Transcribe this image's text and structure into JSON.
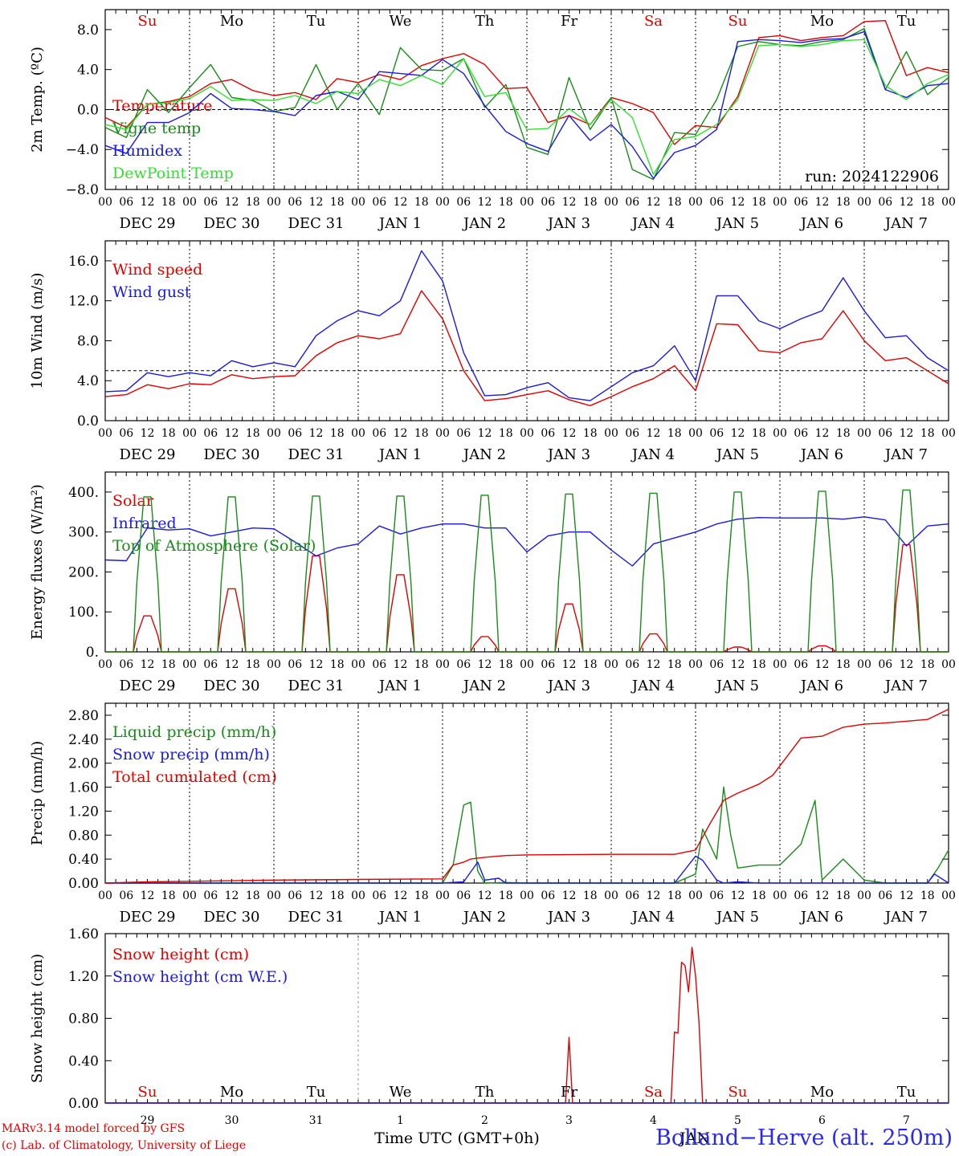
{
  "footer": {
    "credit_line1": "MARv3.14 model forced by GFS",
    "credit_line2": "(c) Lab. of Climatology, University of Liege",
    "station": "Bolland−Herve (alt. 250m)",
    "x_title": "Time UTC (GMT+0h)",
    "x_sub": "JAN"
  },
  "axis": {
    "hour_ticks": [
      "00",
      "06",
      "12",
      "18"
    ],
    "date_labels": [
      "DEC 29",
      "DEC 30",
      "DEC 31",
      "JAN  1",
      "JAN  2",
      "JAN  3",
      "JAN  4",
      "JAN  5",
      "JAN  6",
      "JAN  7"
    ],
    "day_names": [
      "Su",
      "Mo",
      "Tu",
      "We",
      "Th",
      "Fr",
      "Sa",
      "Su",
      "Mo",
      "Tu"
    ],
    "day_colors": [
      "#e00000",
      "#000000",
      "#000000",
      "#000000",
      "#000000",
      "#000000",
      "#e00000",
      "#e00000",
      "#000000",
      "#000000"
    ],
    "bottom_day_numbers": [
      "29",
      "30",
      "31",
      "1",
      "2",
      "3",
      "4",
      "5",
      "6",
      "7"
    ]
  },
  "chart_data": [
    {
      "type": "line",
      "ylabel": "2m Temp. (ºC)",
      "ylim": [
        -8,
        10
      ],
      "yticks": [
        "8.0",
        "4.0",
        "0.0",
        "−4.0",
        "−8.0"
      ],
      "ytick_values": [
        8,
        4,
        0,
        -4,
        -8
      ],
      "ref_line": 0,
      "annotation": "run: 2024122906",
      "series": [
        {
          "name": "Temperature",
          "color": "#e00000",
          "x": [
            0,
            6,
            12,
            18,
            24,
            30,
            36,
            42,
            48,
            54,
            60,
            66,
            72,
            78,
            84,
            90,
            96,
            102,
            108,
            114,
            120,
            126,
            132,
            138,
            144,
            150,
            156,
            162,
            168,
            174,
            180,
            186,
            192,
            198,
            204,
            210,
            216,
            222,
            228,
            234,
            240
          ],
          "values": [
            -0.8,
            -1.8,
            0.5,
            0.8,
            1.3,
            2.6,
            3.0,
            1.9,
            1.4,
            1.7,
            1.0,
            3.1,
            2.7,
            3.5,
            3.0,
            4.4,
            5.1,
            5.6,
            4.5,
            2.1,
            2.2,
            -1.3,
            -0.6,
            -1.5,
            1.2,
            0.6,
            -0.3,
            -3.5,
            -1.6,
            -1.8,
            1.3,
            7.2,
            7.4,
            6.9,
            7.2,
            7.4,
            8.8,
            8.9,
            3.4,
            4.2,
            3.7
          ]
        },
        {
          "name": "Vigne temp",
          "color": "#1a8a1a",
          "x": [
            0,
            6,
            12,
            18,
            24,
            30,
            36,
            42,
            48,
            54,
            60,
            66,
            72,
            78,
            84,
            90,
            96,
            102,
            108,
            114,
            120,
            126,
            132,
            138,
            144,
            150,
            156,
            162,
            168,
            174,
            180,
            186,
            192,
            198,
            204,
            210,
            216,
            222,
            228,
            234,
            240
          ],
          "values": [
            -1.8,
            -2.8,
            2.0,
            -0.3,
            2.2,
            4.5,
            1.2,
            0.9,
            -0.2,
            0.2,
            4.5,
            0.0,
            2.6,
            -0.5,
            6.2,
            4.0,
            3.9,
            5.1,
            0.2,
            2.5,
            -3.8,
            -4.5,
            3.2,
            -2.0,
            1.2,
            -6.0,
            -7.0,
            -2.3,
            -2.5,
            1.0,
            6.3,
            6.8,
            6.5,
            6.4,
            6.8,
            7.0,
            8.1,
            2.0,
            5.8,
            1.5,
            3.2
          ]
        },
        {
          "name": "Humidex",
          "color": "#1a1ae0",
          "x": [
            0,
            6,
            12,
            18,
            24,
            30,
            36,
            42,
            48,
            54,
            60,
            66,
            72,
            78,
            84,
            90,
            96,
            102,
            108,
            114,
            120,
            126,
            132,
            138,
            144,
            150,
            156,
            162,
            168,
            174,
            180,
            186,
            192,
            198,
            204,
            210,
            216,
            222,
            228,
            234,
            240
          ],
          "values": [
            -3.6,
            -4.4,
            -1.3,
            -1.3,
            -0.3,
            1.6,
            0.1,
            0.0,
            -0.2,
            -0.6,
            1.4,
            1.8,
            1.0,
            3.8,
            3.6,
            3.4,
            5.0,
            3.6,
            0.4,
            -2.2,
            -3.4,
            -4.2,
            -0.6,
            -3.1,
            -1.5,
            -3.7,
            -6.9,
            -4.3,
            -3.6,
            -2.0,
            6.8,
            7.0,
            6.9,
            6.7,
            7.0,
            7.1,
            7.8,
            2.0,
            1.2,
            2.4,
            2.6
          ]
        },
        {
          "name": "DewPoint Temp",
          "color": "#33dd33",
          "x": [
            0,
            6,
            12,
            18,
            24,
            30,
            36,
            42,
            48,
            54,
            60,
            66,
            72,
            78,
            84,
            90,
            96,
            102,
            108,
            114,
            120,
            126,
            132,
            138,
            144,
            150,
            156,
            162,
            168,
            174,
            180,
            186,
            192,
            198,
            204,
            210,
            216,
            222,
            228,
            234,
            240
          ],
          "values": [
            -1.5,
            -2.0,
            0.5,
            0.7,
            1.1,
            2.3,
            0.9,
            1.0,
            0.9,
            1.4,
            0.6,
            1.8,
            1.6,
            3.0,
            2.4,
            3.4,
            2.5,
            5.1,
            1.3,
            1.7,
            -2.0,
            -1.9,
            0.1,
            -1.5,
            1.0,
            -0.8,
            -6.5,
            -3.0,
            -2.7,
            -1.5,
            1.0,
            6.4,
            6.5,
            6.3,
            6.5,
            6.9,
            7.0,
            2.4,
            1.0,
            2.6,
            3.5
          ]
        }
      ]
    },
    {
      "type": "line",
      "ylabel": "10m Wind (m/s)",
      "ylim": [
        0,
        18
      ],
      "yticks": [
        "16.0",
        "12.0",
        "8.0",
        "4.0",
        "0.0"
      ],
      "ytick_values": [
        16,
        12,
        8,
        4,
        0
      ],
      "ref_line": 5,
      "series": [
        {
          "name": "Wind speed",
          "color": "#e00000",
          "x": [
            0,
            6,
            12,
            18,
            24,
            30,
            36,
            42,
            48,
            54,
            60,
            66,
            72,
            78,
            84,
            90,
            96,
            102,
            108,
            114,
            120,
            126,
            132,
            138,
            144,
            150,
            156,
            162,
            168,
            174,
            180,
            186,
            192,
            198,
            204,
            210,
            216,
            222,
            228,
            234,
            240
          ],
          "values": [
            2.4,
            2.6,
            3.6,
            3.2,
            3.7,
            3.6,
            4.6,
            4.2,
            4.4,
            4.5,
            6.5,
            7.8,
            8.5,
            8.2,
            8.7,
            13.0,
            10.2,
            5.0,
            2.0,
            2.2,
            2.6,
            3.0,
            2.1,
            1.5,
            2.4,
            3.4,
            4.2,
            5.5,
            3.0,
            9.7,
            9.6,
            7.0,
            6.8,
            7.8,
            8.2,
            11.0,
            8.0,
            6.0,
            6.3,
            5.0,
            3.7
          ]
        },
        {
          "name": "Wind gust",
          "color": "#1a1ae0",
          "x": [
            0,
            6,
            12,
            18,
            24,
            30,
            36,
            42,
            48,
            54,
            60,
            66,
            72,
            78,
            84,
            90,
            96,
            102,
            108,
            114,
            120,
            126,
            132,
            138,
            144,
            150,
            156,
            162,
            168,
            174,
            180,
            186,
            192,
            198,
            204,
            210,
            216,
            222,
            228,
            234,
            240
          ],
          "values": [
            2.9,
            3.0,
            4.8,
            4.4,
            4.8,
            4.5,
            6.0,
            5.4,
            5.8,
            5.4,
            8.5,
            10.0,
            11.0,
            10.5,
            12.0,
            17.0,
            14.0,
            6.8,
            2.5,
            2.6,
            3.3,
            3.8,
            2.3,
            2.0,
            3.4,
            4.8,
            5.5,
            7.5,
            4.0,
            12.5,
            12.5,
            10.0,
            9.2,
            10.2,
            11.0,
            14.3,
            11.0,
            8.3,
            8.5,
            6.3,
            5.0
          ]
        }
      ]
    },
    {
      "type": "line",
      "ylabel": "Energy fluxes (W/m²)",
      "ylim": [
        0,
        450
      ],
      "yticks": [
        "400.",
        "300.",
        "200.",
        "100.",
        "0."
      ],
      "ytick_values": [
        400,
        300,
        200,
        100,
        0
      ],
      "series": [
        {
          "name": "Solar",
          "color": "#e00000",
          "peaks": [
            90,
            158,
            240,
            193,
            38,
            120,
            45,
            12,
            15,
            268
          ]
        },
        {
          "name": "Infrared",
          "color": "#1a1ae0",
          "x": [
            0,
            6,
            12,
            18,
            24,
            30,
            36,
            42,
            48,
            54,
            60,
            66,
            72,
            78,
            84,
            90,
            96,
            102,
            108,
            114,
            120,
            126,
            132,
            138,
            144,
            150,
            156,
            162,
            168,
            174,
            180,
            186,
            192,
            198,
            204,
            210,
            216,
            222,
            228,
            234,
            240
          ],
          "values": [
            230,
            228,
            310,
            305,
            308,
            290,
            300,
            310,
            308,
            275,
            240,
            260,
            270,
            315,
            295,
            310,
            320,
            320,
            310,
            310,
            250,
            290,
            300,
            300,
            255,
            215,
            270,
            285,
            300,
            320,
            332,
            336,
            335,
            335,
            335,
            332,
            338,
            330,
            265,
            315,
            320
          ]
        },
        {
          "name": "Top of Atmosphere (Solar)",
          "color": "#1a8a1a",
          "peaks": [
            388,
            388,
            390,
            390,
            392,
            395,
            397,
            400,
            402,
            405
          ]
        }
      ]
    },
    {
      "type": "line",
      "ylabel": "Precip (mm/h)",
      "ylim": [
        0,
        3.0
      ],
      "yticks": [
        "2.80",
        "2.40",
        "2.00",
        "1.60",
        "1.20",
        "0.80",
        "0.40",
        "0.00"
      ],
      "ytick_values": [
        2.8,
        2.4,
        2.0,
        1.6,
        1.2,
        0.8,
        0.4,
        0.0
      ],
      "series": [
        {
          "name": "Liquid precip (mm/h)",
          "color": "#1a8a1a",
          "x": [
            0,
            12,
            24,
            48,
            72,
            96,
            99,
            102,
            104,
            106,
            108,
            114,
            120,
            144,
            150,
            162,
            168,
            170,
            174,
            176,
            178,
            180,
            186,
            192,
            198,
            202,
            204,
            210,
            216,
            222,
            228,
            234,
            237,
            240
          ],
          "values": [
            0,
            0,
            0,
            0,
            0,
            0,
            0.3,
            1.3,
            1.35,
            0.2,
            0,
            0.01,
            0,
            0,
            0,
            0,
            0.15,
            0.9,
            0.4,
            1.6,
            0.8,
            0.25,
            0.3,
            0.3,
            0.65,
            1.38,
            0.05,
            0.4,
            0.05,
            0,
            0,
            0,
            0.25,
            0.55
          ]
        },
        {
          "name": "Snow precip (mm/h)",
          "color": "#1a1ae0",
          "x": [
            0,
            12,
            24,
            48,
            72,
            96,
            102,
            106,
            108,
            112,
            114,
            120,
            144,
            162,
            168,
            170,
            174,
            176,
            180,
            186,
            192,
            216,
            234,
            236,
            240
          ],
          "values": [
            0,
            0,
            0,
            0,
            0,
            0,
            0.02,
            0.35,
            0.05,
            0.08,
            0,
            0,
            0,
            0,
            0.45,
            0.38,
            0.05,
            0,
            0.02,
            0,
            0,
            0,
            0,
            0.15,
            0
          ]
        },
        {
          "name": "Total cumulated (cm)",
          "color": "#e00000",
          "x": [
            0,
            12,
            24,
            48,
            72,
            96,
            99,
            102,
            104,
            108,
            114,
            120,
            144,
            156,
            162,
            168,
            172,
            176,
            180,
            186,
            190,
            198,
            204,
            210,
            216,
            222,
            228,
            234,
            240
          ],
          "values": [
            0,
            0.02,
            0.03,
            0.05,
            0.06,
            0.07,
            0.3,
            0.35,
            0.4,
            0.43,
            0.46,
            0.47,
            0.48,
            0.48,
            0.48,
            0.55,
            0.98,
            1.38,
            1.5,
            1.65,
            1.8,
            2.42,
            2.45,
            2.6,
            2.65,
            2.67,
            2.7,
            2.73,
            2.9
          ]
        }
      ]
    },
    {
      "type": "line",
      "ylabel": "Snow height (cm)",
      "ylim": [
        0,
        1.6
      ],
      "yticks": [
        "1.60",
        "1.20",
        "0.80",
        "0.40",
        "0.00"
      ],
      "ytick_values": [
        1.6,
        1.2,
        0.8,
        0.4,
        0.0
      ],
      "series": [
        {
          "name": "Snow height (cm)",
          "color": "#e00000",
          "x": [
            0,
            120,
            131,
            132,
            133,
            134,
            161,
            162,
            163,
            164,
            165,
            166,
            167,
            168,
            169,
            170,
            171,
            172,
            173,
            174,
            240
          ],
          "values": [
            0,
            0,
            0,
            0.62,
            0,
            0,
            0,
            0.67,
            0.66,
            1.33,
            1.3,
            1.05,
            1.47,
            1.2,
            0.75,
            0,
            0,
            0,
            0,
            0,
            0
          ]
        },
        {
          "name": "Snow height (cm W.E.)",
          "color": "#1a1ae0",
          "x": [
            0,
            240
          ],
          "values": [
            0,
            0
          ]
        }
      ]
    }
  ]
}
